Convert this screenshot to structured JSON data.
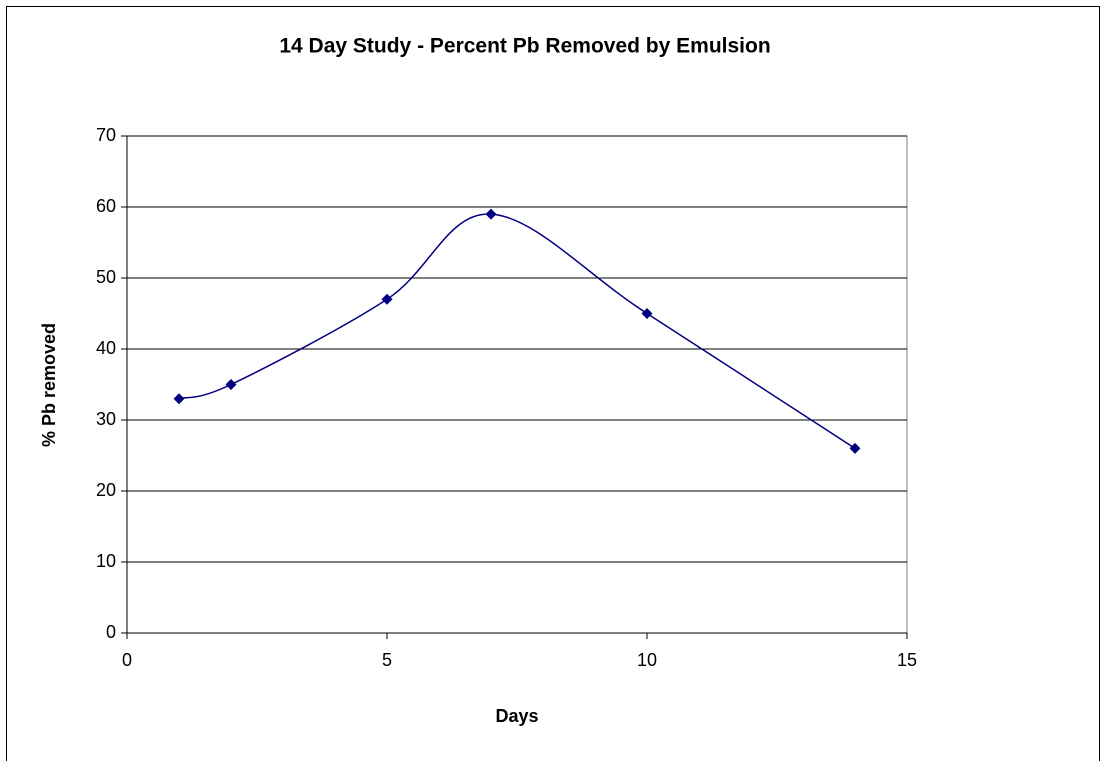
{
  "chart_data": {
    "type": "line",
    "title": "14 Day Study - Percent Pb Removed by Emulsion",
    "xlabel": "Days",
    "ylabel": "% Pb removed",
    "x": [
      1,
      2,
      5,
      7,
      10,
      14
    ],
    "series": [
      {
        "color": "#000080",
        "values": [
          33,
          35,
          47,
          59,
          45,
          26
        ]
      }
    ],
    "xlim": [
      0,
      15
    ],
    "xticks": [
      0,
      5,
      10,
      15
    ],
    "ylim": [
      0,
      70
    ],
    "yticks": [
      0,
      10,
      20,
      30,
      40,
      50,
      60,
      70
    ],
    "grid": true,
    "smooth": true
  }
}
